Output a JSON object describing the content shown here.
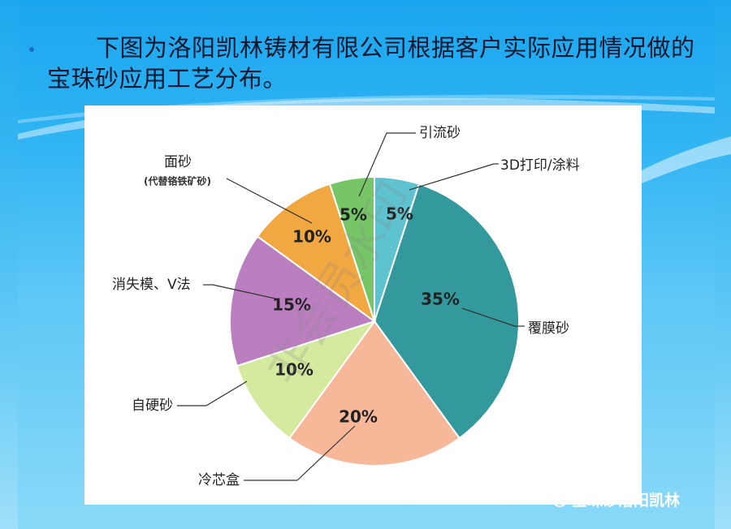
{
  "intro_text": "下图为洛阳凯林铸材有限公司根据客户实际应用情况做的宝珠砂应用工艺分布。",
  "footer": {
    "account_name": "宝珠砂洛阳凯林",
    "icon": "wechat-icon"
  },
  "watermark_text": "非会员水印",
  "chart_data": {
    "type": "pie",
    "title": "",
    "start_angle_deg": 0,
    "direction": "clockwise",
    "slices": [
      {
        "label": "3D打印/涂料",
        "value": 5,
        "display": "5%",
        "color": "#5ec3cf"
      },
      {
        "label": "覆膜砂",
        "value": 35,
        "display": "35%",
        "color": "#33999c"
      },
      {
        "label": "冷芯盒",
        "value": 20,
        "display": "20%",
        "color": "#f7b89a"
      },
      {
        "label": "自硬砂",
        "value": 10,
        "display": "10%",
        "color": "#d4ea9e"
      },
      {
        "label": "消失模、V法",
        "value": 15,
        "display": "15%",
        "color": "#bb7fbf"
      },
      {
        "label": "面砂",
        "sublabel": "(代替铬铁矿砂)",
        "value": 10,
        "display": "10%",
        "color": "#f2a841"
      },
      {
        "label": "引流砂",
        "value": 5,
        "display": "5%",
        "color": "#76c567"
      }
    ]
  }
}
